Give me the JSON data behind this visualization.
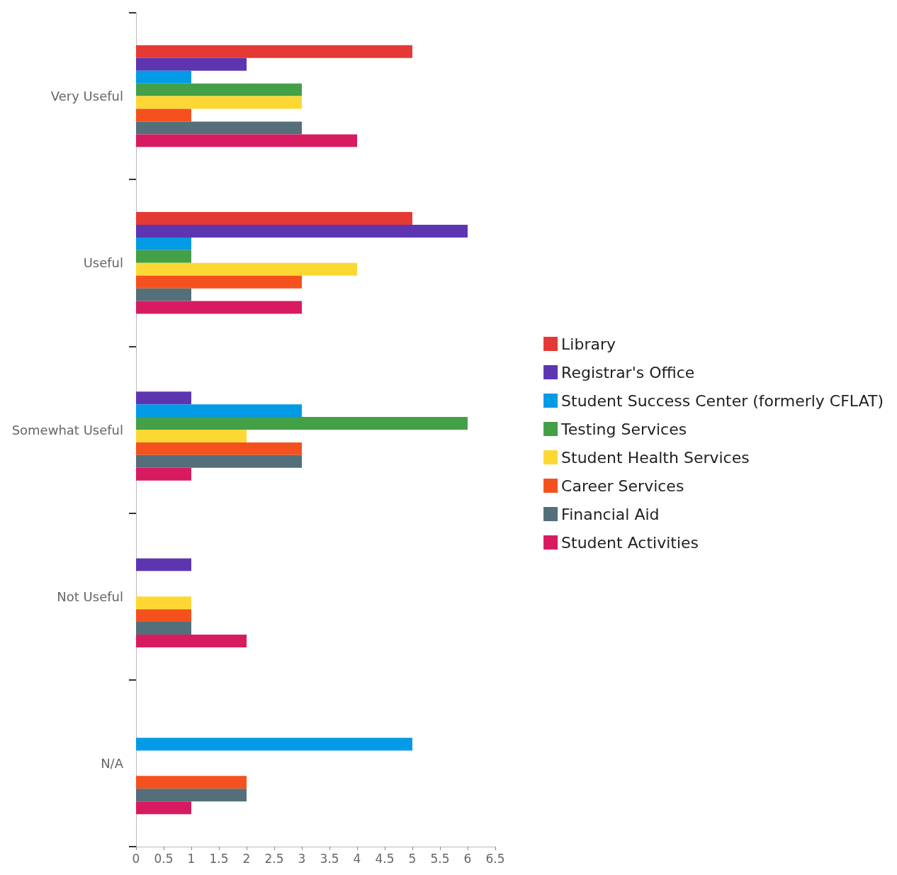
{
  "chart_data": {
    "type": "bar",
    "orientation": "horizontal",
    "categories": [
      "Very Useful",
      "Useful",
      "Somewhat Useful",
      "Not Useful",
      "N/A"
    ],
    "series": [
      {
        "name": "Library",
        "color": "#e53935",
        "values": [
          5,
          5,
          0,
          0,
          0
        ]
      },
      {
        "name": "Registrar's Office",
        "color": "#5e35b1",
        "values": [
          2,
          6,
          1,
          1,
          0
        ]
      },
      {
        "name": "Student Success Center (formerly CFLAT)",
        "color": "#039be5",
        "values": [
          1,
          1,
          3,
          0,
          5
        ]
      },
      {
        "name": "Testing Services",
        "color": "#43a047",
        "values": [
          3,
          1,
          6,
          0,
          0
        ]
      },
      {
        "name": "Student Health Services",
        "color": "#fdd835",
        "values": [
          3,
          4,
          2,
          1,
          0
        ]
      },
      {
        "name": "Career Services",
        "color": "#f4511e",
        "values": [
          1,
          3,
          3,
          1,
          2
        ]
      },
      {
        "name": "Financial Aid",
        "color": "#546e7a",
        "values": [
          3,
          1,
          3,
          1,
          2
        ]
      },
      {
        "name": "Student Activities",
        "color": "#d81b60",
        "values": [
          4,
          3,
          1,
          2,
          1
        ]
      }
    ],
    "xlim": [
      0,
      6.5
    ],
    "xticks": [
      0,
      0.5,
      1,
      1.5,
      2,
      2.5,
      3,
      3.5,
      4,
      4.5,
      5,
      5.5,
      6,
      6.5
    ],
    "grid": false,
    "legend": "right"
  }
}
